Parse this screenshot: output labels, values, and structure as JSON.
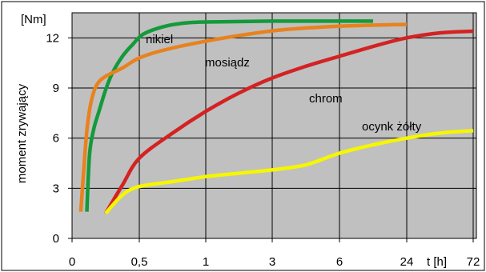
{
  "chart_data": {
    "type": "line",
    "ylabel": "moment zrywający",
    "y_unit": "[Nm]",
    "xlabel": "t [h]",
    "ylim": [
      0,
      13.5
    ],
    "y_ticks": [
      0,
      3,
      6,
      9,
      12
    ],
    "x_ticks": [
      "0",
      "0,5",
      "1",
      "3",
      "6",
      "24",
      "72"
    ],
    "grid": true,
    "plot_background": "#c0c0c0",
    "series": [
      {
        "name": "nikiel",
        "color": "#139a3a",
        "points": [
          [
            0.22,
            1.6
          ],
          [
            0.26,
            5.0
          ],
          [
            0.32,
            6.5
          ],
          [
            0.4,
            7.6
          ],
          [
            0.5,
            8.9
          ],
          [
            0.6,
            9.9
          ],
          [
            0.75,
            10.9
          ],
          [
            0.9,
            11.6
          ],
          [
            1.05,
            12.2
          ],
          [
            1.3,
            12.6
          ],
          [
            1.6,
            12.85
          ],
          [
            2.0,
            12.95
          ],
          [
            3.0,
            13.0
          ],
          [
            4.5,
            13.0
          ],
          [
            6.0,
            13.0
          ],
          [
            7.0,
            13.0
          ],
          [
            8.0,
            13.0
          ]
        ]
      },
      {
        "name": "mosiądz",
        "color": "#e8821e",
        "points": [
          [
            0.13,
            1.6
          ],
          [
            0.19,
            5.0
          ],
          [
            0.23,
            6.8
          ],
          [
            0.29,
            8.3
          ],
          [
            0.37,
            9.2
          ],
          [
            0.5,
            9.7
          ],
          [
            0.75,
            10.2
          ],
          [
            1.0,
            10.8
          ],
          [
            1.4,
            11.3
          ],
          [
            2.0,
            11.8
          ],
          [
            2.6,
            12.2
          ],
          [
            3.2,
            12.5
          ],
          [
            4.0,
            12.7
          ],
          [
            5.0,
            12.8
          ],
          [
            6.0,
            12.8
          ],
          [
            7.0,
            12.8
          ],
          [
            8.0,
            12.8
          ]
        ]
      },
      {
        "name": "chrom",
        "color": "#d42222",
        "points": [
          [
            0.5,
            1.5
          ],
          [
            0.75,
            3.2
          ],
          [
            1.0,
            4.8
          ],
          [
            1.5,
            6.3
          ],
          [
            2.0,
            7.6
          ],
          [
            2.5,
            8.7
          ],
          [
            3.0,
            9.6
          ],
          [
            3.5,
            10.3
          ],
          [
            4.0,
            10.9
          ],
          [
            4.6,
            11.6
          ],
          [
            5.0,
            12.0
          ],
          [
            5.5,
            12.3
          ],
          [
            6.0,
            12.4
          ],
          [
            6.5,
            12.4
          ],
          [
            7.0,
            12.4
          ],
          [
            8.0,
            12.4
          ]
        ]
      },
      {
        "name": "ocynk żółty",
        "color": "#f6f600",
        "points": [
          [
            0.5,
            1.5
          ],
          [
            0.75,
            2.6
          ],
          [
            1.0,
            3.1
          ],
          [
            1.5,
            3.4
          ],
          [
            2.0,
            3.7
          ],
          [
            2.5,
            3.9
          ],
          [
            3.0,
            4.1
          ],
          [
            3.5,
            4.4
          ],
          [
            4.0,
            5.1
          ],
          [
            4.5,
            5.6
          ],
          [
            5.0,
            6.0
          ],
          [
            5.5,
            6.3
          ],
          [
            6.0,
            6.45
          ],
          [
            6.5,
            6.5
          ],
          [
            7.0,
            6.5
          ],
          [
            8.0,
            6.5
          ]
        ]
      }
    ]
  }
}
